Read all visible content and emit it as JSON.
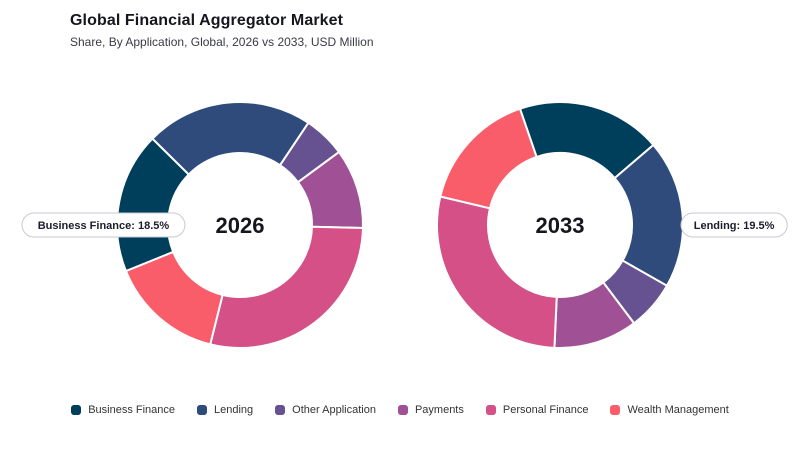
{
  "chart_data": {
    "type": "pie",
    "title": "Global Financial Aggregator Market",
    "subtitle": "Share, By Application, Global, 2026 vs 2033, USD Million",
    "categories": [
      "Business Finance",
      "Lending",
      "Other Application",
      "Payments",
      "Personal Finance",
      "Wealth Management"
    ],
    "colors": [
      "#003f5c",
      "#2f4b7c",
      "#665191",
      "#a05195",
      "#d45087",
      "#f95d6a"
    ],
    "charts": [
      {
        "label": "2026",
        "values": [
          18.5,
          22.0,
          5.5,
          10.5,
          28.5,
          15.0
        ],
        "callout": "Business Finance: 18.5%"
      },
      {
        "label": "2033",
        "values": [
          19.0,
          19.5,
          6.5,
          11.0,
          28.0,
          16.0
        ],
        "callout": "Lending: 19.5%"
      }
    ],
    "legend_position": "bottom"
  }
}
